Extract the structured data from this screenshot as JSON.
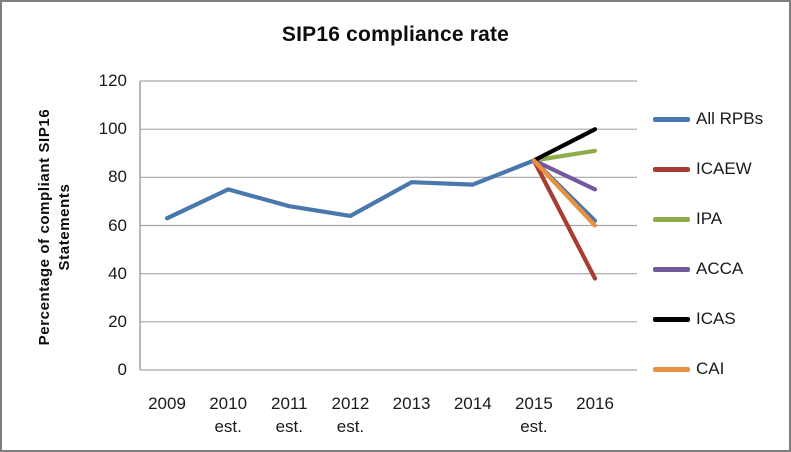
{
  "frame": {
    "border_color": "#7F7F7F",
    "background": "#FFFFFF",
    "grid_color": "#A6A6A6",
    "axis_color": "#9A9A9A",
    "text_color": "#1A1A1A"
  },
  "chart_data": {
    "type": "line",
    "title": "SIP16 compliance rate",
    "ylabel": "Percentage of compliant SIP16 Statements",
    "ylabel_line1": "Percentage of compliant SIP16",
    "ylabel_line2": "Statements",
    "xlabel": "",
    "categories": [
      "2009",
      "2010 est.",
      "2011 est.",
      "2012 est.",
      "2013",
      "2014",
      "2015 est.",
      "2016"
    ],
    "x_tick_lines": [
      [
        "2009"
      ],
      [
        "2010",
        "est."
      ],
      [
        "2011",
        "est."
      ],
      [
        "2012",
        "est."
      ],
      [
        "2013"
      ],
      [
        "2014"
      ],
      [
        "2015",
        "est."
      ],
      [
        "2016"
      ]
    ],
    "y_ticks": [
      0,
      20,
      40,
      60,
      80,
      100,
      120
    ],
    "ylim": [
      0,
      120
    ],
    "grid": true,
    "legend_position": "right",
    "series": [
      {
        "name": "All RPBs",
        "color": "#4A77AC",
        "values": [
          63,
          75,
          68,
          64,
          78,
          77,
          87,
          62
        ]
      },
      {
        "name": "ICAEW",
        "color": "#A83C32",
        "values": [
          null,
          null,
          null,
          null,
          null,
          null,
          87,
          38
        ]
      },
      {
        "name": "IPA",
        "color": "#8FAC4B",
        "values": [
          null,
          null,
          null,
          null,
          null,
          null,
          87,
          91
        ]
      },
      {
        "name": "ACCA",
        "color": "#73589B",
        "values": [
          null,
          null,
          null,
          null,
          null,
          null,
          87,
          75
        ]
      },
      {
        "name": "ICAS",
        "color": "#000000",
        "values": [
          null,
          null,
          null,
          null,
          null,
          null,
          87,
          100
        ]
      },
      {
        "name": "CAI",
        "color": "#E8913F",
        "values": [
          null,
          null,
          null,
          null,
          null,
          null,
          87,
          60
        ]
      }
    ]
  }
}
